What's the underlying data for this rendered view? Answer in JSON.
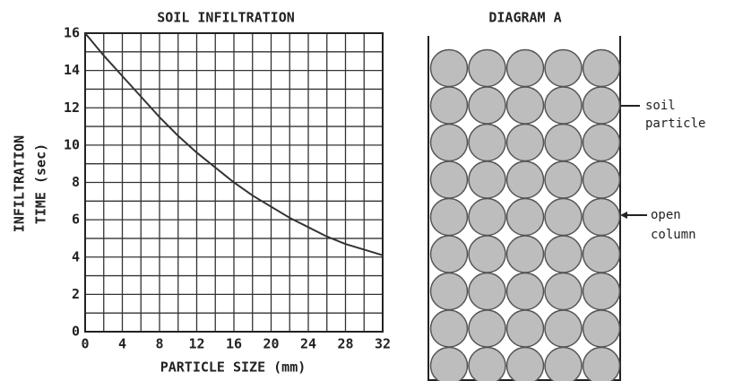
{
  "chart_data": {
    "type": "line",
    "title": "SOIL INFILTRATION",
    "xlabel": "PARTICLE SIZE (mm)",
    "ylabel": [
      "INFILTRATION",
      "TIME (sec)"
    ],
    "x": [
      0,
      2,
      4,
      6,
      8,
      10,
      12,
      14,
      16,
      18,
      20,
      22,
      24,
      26,
      28,
      30,
      32
    ],
    "values": [
      16,
      14.8,
      13.7,
      12.6,
      11.5,
      10.5,
      9.6,
      8.8,
      8.0,
      7.3,
      6.7,
      6.1,
      5.6,
      5.1,
      4.7,
      4.4,
      4.1
    ],
    "color": "#333333",
    "xlim": [
      0,
      32
    ],
    "xticks": [
      0,
      4,
      8,
      12,
      16,
      20,
      24,
      28,
      32
    ],
    "ylim": [
      0,
      16
    ],
    "yticks": [
      0,
      2,
      4,
      6,
      8,
      10,
      12,
      14,
      16
    ],
    "grid": true
  },
  "diagram": {
    "title": "DIAGRAM A",
    "labels": [
      [
        "soil",
        "particle"
      ],
      [
        "open",
        "column"
      ]
    ]
  }
}
